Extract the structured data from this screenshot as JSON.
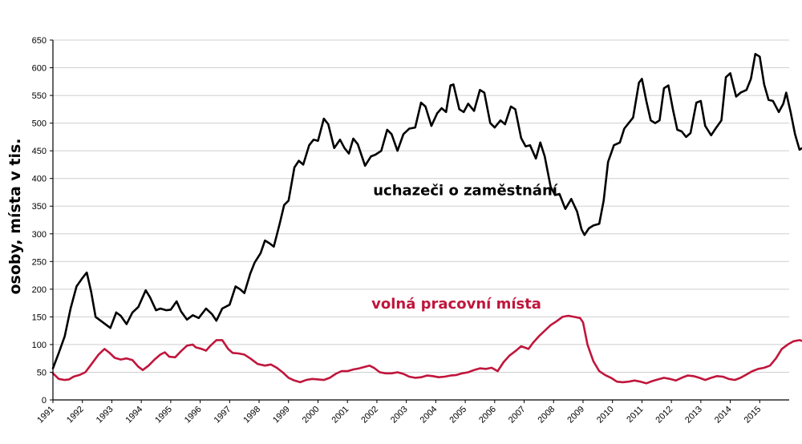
{
  "chart_data": {
    "type": "line",
    "title": "",
    "ylabel": "osoby, místa v tis.",
    "xlabel": "",
    "ylim": [
      0,
      650
    ],
    "yticks": [
      0,
      50,
      100,
      150,
      200,
      250,
      300,
      350,
      400,
      450,
      500,
      550,
      600,
      650
    ],
    "xlim": [
      1991,
      2016
    ],
    "xticks": [
      "1991",
      "1992",
      "1993",
      "1994",
      "1995",
      "1996",
      "1997",
      "1998",
      "1999",
      "2000",
      "2001",
      "2002",
      "2003",
      "2004",
      "2005",
      "2006",
      "2007",
      "2008",
      "2009",
      "2010",
      "2011",
      "2012",
      "2013",
      "2014",
      "2015"
    ],
    "grid": "horizontal",
    "series": [
      {
        "name": "uchazeči o zaměstnání",
        "color": "#000000",
        "points": [
          [
            1991.0,
            57
          ],
          [
            1991.2,
            85
          ],
          [
            1991.4,
            115
          ],
          [
            1991.6,
            165
          ],
          [
            1991.8,
            205
          ],
          [
            1992.0,
            220
          ],
          [
            1992.15,
            230
          ],
          [
            1992.3,
            195
          ],
          [
            1992.45,
            150
          ],
          [
            1992.7,
            140
          ],
          [
            1992.95,
            130
          ],
          [
            1993.15,
            158
          ],
          [
            1993.3,
            152
          ],
          [
            1993.5,
            137
          ],
          [
            1993.7,
            158
          ],
          [
            1993.9,
            168
          ],
          [
            1994.15,
            198
          ],
          [
            1994.3,
            185
          ],
          [
            1994.5,
            162
          ],
          [
            1994.65,
            165
          ],
          [
            1994.85,
            162
          ],
          [
            1995.0,
            163
          ],
          [
            1995.2,
            178
          ],
          [
            1995.35,
            160
          ],
          [
            1995.55,
            145
          ],
          [
            1995.75,
            153
          ],
          [
            1995.95,
            148
          ],
          [
            1996.2,
            165
          ],
          [
            1996.4,
            155
          ],
          [
            1996.55,
            143
          ],
          [
            1996.75,
            165
          ],
          [
            1997.0,
            172
          ],
          [
            1997.2,
            205
          ],
          [
            1997.35,
            200
          ],
          [
            1997.5,
            193
          ],
          [
            1997.7,
            228
          ],
          [
            1997.85,
            248
          ],
          [
            1998.05,
            265
          ],
          [
            1998.2,
            288
          ],
          [
            1998.35,
            283
          ],
          [
            1998.5,
            277
          ],
          [
            1998.7,
            318
          ],
          [
            1998.85,
            352
          ],
          [
            1999.0,
            360
          ],
          [
            1999.2,
            420
          ],
          [
            1999.35,
            432
          ],
          [
            1999.5,
            425
          ],
          [
            1999.7,
            460
          ],
          [
            1999.85,
            470
          ],
          [
            2000.0,
            468
          ],
          [
            2000.2,
            508
          ],
          [
            2000.35,
            498
          ],
          [
            2000.55,
            455
          ],
          [
            2000.75,
            470
          ],
          [
            2000.9,
            455
          ],
          [
            2001.05,
            445
          ],
          [
            2001.2,
            472
          ],
          [
            2001.35,
            462
          ],
          [
            2001.6,
            423
          ],
          [
            2001.8,
            440
          ],
          [
            2001.95,
            443
          ],
          [
            2002.15,
            450
          ],
          [
            2002.35,
            488
          ],
          [
            2002.5,
            480
          ],
          [
            2002.7,
            450
          ],
          [
            2002.9,
            480
          ],
          [
            2003.1,
            490
          ],
          [
            2003.3,
            492
          ],
          [
            2003.5,
            537
          ],
          [
            2003.65,
            530
          ],
          [
            2003.85,
            495
          ],
          [
            2004.05,
            518
          ],
          [
            2004.2,
            527
          ],
          [
            2004.35,
            520
          ],
          [
            2004.5,
            568
          ],
          [
            2004.6,
            570
          ],
          [
            2004.8,
            525
          ],
          [
            2004.95,
            520
          ],
          [
            2005.1,
            535
          ],
          [
            2005.3,
            522
          ],
          [
            2005.5,
            560
          ],
          [
            2005.65,
            555
          ],
          [
            2005.85,
            500
          ],
          [
            2006.0,
            492
          ],
          [
            2006.2,
            505
          ],
          [
            2006.35,
            498
          ],
          [
            2006.55,
            530
          ],
          [
            2006.7,
            525
          ],
          [
            2006.9,
            473
          ],
          [
            2007.05,
            458
          ],
          [
            2007.2,
            460
          ],
          [
            2007.4,
            436
          ],
          [
            2007.55,
            465
          ],
          [
            2007.7,
            440
          ],
          [
            2007.9,
            385
          ],
          [
            2008.05,
            370
          ],
          [
            2008.2,
            372
          ],
          [
            2008.4,
            345
          ],
          [
            2008.6,
            363
          ],
          [
            2008.8,
            340
          ],
          [
            2008.95,
            308
          ],
          [
            2009.05,
            298
          ],
          [
            2009.2,
            310
          ],
          [
            2009.35,
            315
          ],
          [
            2009.55,
            318
          ],
          [
            2009.7,
            360
          ],
          [
            2009.85,
            430
          ],
          [
            2010.05,
            460
          ],
          [
            2010.25,
            465
          ],
          [
            2010.4,
            490
          ],
          [
            2010.55,
            500
          ],
          [
            2010.7,
            510
          ],
          [
            2010.9,
            573
          ],
          [
            2011.0,
            580
          ],
          [
            2011.15,
            540
          ],
          [
            2011.3,
            505
          ],
          [
            2011.45,
            500
          ],
          [
            2011.6,
            505
          ],
          [
            2011.75,
            563
          ],
          [
            2011.9,
            568
          ],
          [
            2012.05,
            525
          ],
          [
            2012.2,
            488
          ],
          [
            2012.35,
            485
          ],
          [
            2012.5,
            475
          ],
          [
            2012.65,
            482
          ],
          [
            2012.85,
            537
          ],
          [
            2013.0,
            540
          ],
          [
            2013.15,
            495
          ],
          [
            2013.35,
            478
          ],
          [
            2013.5,
            490
          ],
          [
            2013.7,
            505
          ],
          [
            2013.85,
            583
          ],
          [
            2014.0,
            590
          ],
          [
            2014.2,
            548
          ],
          [
            2014.35,
            555
          ],
          [
            2014.55,
            560
          ],
          [
            2014.7,
            580
          ],
          [
            2014.85,
            625
          ],
          [
            2015.0,
            620
          ],
          [
            2015.15,
            570
          ],
          [
            2015.3,
            542
          ],
          [
            2015.45,
            540
          ],
          [
            2015.65,
            520
          ],
          [
            2015.8,
            535
          ],
          [
            2015.9,
            555
          ],
          [
            2016.05,
            520
          ],
          [
            2016.2,
            480
          ],
          [
            2016.35,
            452
          ],
          [
            2016.45,
            455
          ],
          [
            2016.6,
            440
          ],
          [
            2016.7,
            430
          ],
          [
            2016.8,
            432
          ],
          [
            2016.87,
            455
          ]
        ]
      },
      {
        "name": "volná pracovní místa",
        "color": "#c0163c",
        "points": [
          [
            1991.0,
            48
          ],
          [
            1991.2,
            38
          ],
          [
            1991.4,
            36
          ],
          [
            1991.55,
            37
          ],
          [
            1991.7,
            42
          ],
          [
            1991.9,
            45
          ],
          [
            1992.1,
            50
          ],
          [
            1992.3,
            64
          ],
          [
            1992.55,
            82
          ],
          [
            1992.75,
            92
          ],
          [
            1992.9,
            86
          ],
          [
            1993.1,
            76
          ],
          [
            1993.3,
            73
          ],
          [
            1993.5,
            75
          ],
          [
            1993.7,
            72
          ],
          [
            1993.9,
            60
          ],
          [
            1994.05,
            54
          ],
          [
            1994.25,
            62
          ],
          [
            1994.45,
            73
          ],
          [
            1994.65,
            82
          ],
          [
            1994.8,
            86
          ],
          [
            1994.95,
            78
          ],
          [
            1995.15,
            77
          ],
          [
            1995.35,
            88
          ],
          [
            1995.55,
            98
          ],
          [
            1995.75,
            100
          ],
          [
            1995.85,
            95
          ],
          [
            1996.05,
            92
          ],
          [
            1996.2,
            89
          ],
          [
            1996.35,
            98
          ],
          [
            1996.55,
            108
          ],
          [
            1996.75,
            108
          ],
          [
            1996.95,
            92
          ],
          [
            1997.1,
            85
          ],
          [
            1997.3,
            84
          ],
          [
            1997.5,
            82
          ],
          [
            1997.7,
            75
          ],
          [
            1997.95,
            65
          ],
          [
            1998.2,
            62
          ],
          [
            1998.4,
            64
          ],
          [
            1998.6,
            58
          ],
          [
            1998.8,
            50
          ],
          [
            1999.0,
            40
          ],
          [
            1999.2,
            35
          ],
          [
            1999.4,
            32
          ],
          [
            1999.6,
            36
          ],
          [
            1999.8,
            38
          ],
          [
            2000.0,
            37
          ],
          [
            2000.2,
            36
          ],
          [
            2000.4,
            40
          ],
          [
            2000.6,
            47
          ],
          [
            2000.8,
            52
          ],
          [
            2001.0,
            52
          ],
          [
            2001.2,
            55
          ],
          [
            2001.4,
            57
          ],
          [
            2001.6,
            60
          ],
          [
            2001.75,
            62
          ],
          [
            2001.9,
            58
          ],
          [
            2002.1,
            50
          ],
          [
            2002.3,
            48
          ],
          [
            2002.5,
            48
          ],
          [
            2002.7,
            50
          ],
          [
            2002.9,
            47
          ],
          [
            2003.1,
            42
          ],
          [
            2003.3,
            40
          ],
          [
            2003.5,
            41
          ],
          [
            2003.7,
            44
          ],
          [
            2003.9,
            43
          ],
          [
            2004.1,
            41
          ],
          [
            2004.3,
            42
          ],
          [
            2004.5,
            44
          ],
          [
            2004.7,
            45
          ],
          [
            2004.9,
            48
          ],
          [
            2005.1,
            50
          ],
          [
            2005.3,
            54
          ],
          [
            2005.5,
            57
          ],
          [
            2005.7,
            56
          ],
          [
            2005.9,
            58
          ],
          [
            2006.1,
            52
          ],
          [
            2006.3,
            68
          ],
          [
            2006.5,
            80
          ],
          [
            2006.7,
            88
          ],
          [
            2006.9,
            97
          ],
          [
            2007.0,
            95
          ],
          [
            2007.15,
            92
          ],
          [
            2007.3,
            103
          ],
          [
            2007.5,
            115
          ],
          [
            2007.7,
            125
          ],
          [
            2007.9,
            135
          ],
          [
            2008.1,
            142
          ],
          [
            2008.3,
            150
          ],
          [
            2008.5,
            152
          ],
          [
            2008.7,
            150
          ],
          [
            2008.9,
            148
          ],
          [
            2009.0,
            140
          ],
          [
            2009.15,
            100
          ],
          [
            2009.35,
            70
          ],
          [
            2009.55,
            52
          ],
          [
            2009.75,
            45
          ],
          [
            2009.95,
            40
          ],
          [
            2010.15,
            33
          ],
          [
            2010.35,
            32
          ],
          [
            2010.55,
            33
          ],
          [
            2010.75,
            35
          ],
          [
            2010.95,
            33
          ],
          [
            2011.15,
            30
          ],
          [
            2011.35,
            34
          ],
          [
            2011.55,
            37
          ],
          [
            2011.75,
            40
          ],
          [
            2011.95,
            38
          ],
          [
            2012.15,
            35
          ],
          [
            2012.35,
            40
          ],
          [
            2012.55,
            44
          ],
          [
            2012.75,
            43
          ],
          [
            2012.95,
            40
          ],
          [
            2013.15,
            36
          ],
          [
            2013.35,
            40
          ],
          [
            2013.55,
            43
          ],
          [
            2013.75,
            42
          ],
          [
            2013.95,
            38
          ],
          [
            2014.15,
            36
          ],
          [
            2014.35,
            40
          ],
          [
            2014.55,
            46
          ],
          [
            2014.75,
            52
          ],
          [
            2014.95,
            56
          ],
          [
            2015.15,
            58
          ],
          [
            2015.35,
            62
          ],
          [
            2015.55,
            75
          ],
          [
            2015.75,
            92
          ],
          [
            2015.95,
            100
          ],
          [
            2016.15,
            106
          ],
          [
            2016.35,
            108
          ],
          [
            2016.55,
            105
          ],
          [
            2016.75,
            102
          ],
          [
            2016.87,
            100
          ]
        ]
      }
    ],
    "annotations": [
      {
        "text": "uchazeči o zaměstnání",
        "series": 0,
        "x": 2005.0,
        "y": 370
      },
      {
        "text": "volná pracovní místa",
        "series": 1,
        "x": 2004.7,
        "y": 165
      }
    ]
  }
}
